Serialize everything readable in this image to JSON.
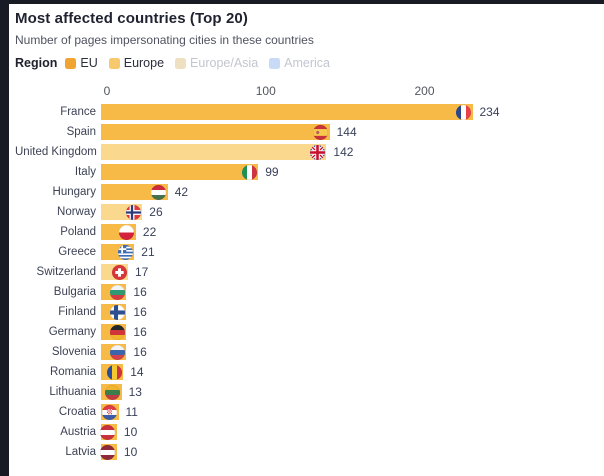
{
  "header": {
    "title": "Most affected countries (Top 20)",
    "subtitle": "Number of pages impersonating cities in these countries"
  },
  "chart_data": {
    "type": "bar",
    "orientation": "horizontal",
    "title": "Most affected countries (Top 20)",
    "subtitle": "Number of pages impersonating cities in these countries",
    "grid": false,
    "legend": {
      "title": "Region",
      "position": "top",
      "items": [
        {
          "label": "EU",
          "color": "#f1a42f",
          "active": true
        },
        {
          "label": "Europe",
          "color": "#f7c96d",
          "active": true
        },
        {
          "label": "Europe/Asia",
          "color": "#f0e0c2",
          "active": false
        },
        {
          "label": "America",
          "color": "#c8daf6",
          "active": false
        }
      ]
    },
    "x_ticks": [
      "0",
      "100",
      "200"
    ],
    "x_tick_values": [
      0,
      100,
      200
    ],
    "xlim": [
      0,
      290
    ],
    "region_colors": {
      "EU": "#f7ba47",
      "Europe": "#fad88d",
      "Europe/Asia": "#f0e0c2",
      "America": "#c8daf6"
    },
    "countries": [
      {
        "name": "France",
        "value": 234,
        "region": "EU",
        "flag": {
          "type": "v",
          "colors": [
            "#29488f",
            "#ffffff",
            "#e8414b"
          ]
        }
      },
      {
        "name": "Spain",
        "value": 144,
        "region": "EU",
        "flag": {
          "type": "spain",
          "colors": [
            "#c8323e",
            "#f7c94c"
          ]
        }
      },
      {
        "name": "United Kingdom",
        "value": 142,
        "region": "Europe",
        "flag": {
          "type": "uk",
          "colors": [
            "#2b3f8e",
            "#ffffff",
            "#c8102e"
          ]
        }
      },
      {
        "name": "Italy",
        "value": 99,
        "region": "EU",
        "flag": {
          "type": "v",
          "colors": [
            "#1d9355",
            "#ffffff",
            "#cd3340"
          ]
        }
      },
      {
        "name": "Hungary",
        "value": 42,
        "region": "EU",
        "flag": {
          "type": "h",
          "colors": [
            "#cd2a3e",
            "#ffffff",
            "#477050"
          ]
        }
      },
      {
        "name": "Norway",
        "value": 26,
        "region": "Europe",
        "flag": {
          "type": "nordic",
          "bg": "#e0393e",
          "arms": [
            {
              "color": "#ffffff",
              "w": 6.5
            },
            {
              "color": "#2b3c7e",
              "w": 3
            }
          ]
        }
      },
      {
        "name": "Poland",
        "value": 22,
        "region": "EU",
        "flag": {
          "type": "h",
          "colors": [
            "#ffffff",
            "#d4213d"
          ]
        }
      },
      {
        "name": "Greece",
        "value": 21,
        "region": "EU",
        "flag": {
          "type": "greece",
          "colors": [
            "#3d6eb5",
            "#ffffff"
          ]
        }
      },
      {
        "name": "Switzerland",
        "value": 17,
        "region": "Europe",
        "flag": {
          "type": "plus",
          "colors": [
            "#d8343a",
            "#ffffff"
          ]
        }
      },
      {
        "name": "Bulgaria",
        "value": 16,
        "region": "EU",
        "flag": {
          "type": "h",
          "colors": [
            "#f2f4f5",
            "#2e9a74",
            "#d53b42"
          ]
        }
      },
      {
        "name": "Finland",
        "value": 16,
        "region": "EU",
        "flag": {
          "type": "nordic",
          "bg": "#ffffff",
          "arms": [
            {
              "color": "#2e4f8f",
              "w": 5.5
            }
          ]
        }
      },
      {
        "name": "Germany",
        "value": 16,
        "region": "EU",
        "flag": {
          "type": "h",
          "colors": [
            "#26272b",
            "#d03438",
            "#f2b32c"
          ]
        }
      },
      {
        "name": "Slovenia",
        "value": 16,
        "region": "EU",
        "flag": {
          "type": "h",
          "colors": [
            "#f2f4f5",
            "#3c66ab",
            "#d5414b"
          ]
        }
      },
      {
        "name": "Romania",
        "value": 14,
        "region": "EU",
        "flag": {
          "type": "v",
          "colors": [
            "#2b4d9b",
            "#f5c832",
            "#cf3340"
          ]
        }
      },
      {
        "name": "Lithuania",
        "value": 13,
        "region": "EU",
        "flag": {
          "type": "h",
          "colors": [
            "#f0b431",
            "#3b7e4c",
            "#c23a44"
          ]
        }
      },
      {
        "name": "Croatia",
        "value": 11,
        "region": "EU",
        "flag": {
          "type": "croatia",
          "colors": [
            "#dd3b46",
            "#ffffff",
            "#3c5aa5"
          ]
        }
      },
      {
        "name": "Austria",
        "value": 10,
        "region": "EU",
        "flag": {
          "type": "h",
          "colors": [
            "#c8313e",
            "#ffffff",
            "#c8313e"
          ]
        }
      },
      {
        "name": "Latvia",
        "value": 10,
        "region": "EU",
        "flag": {
          "type": "h",
          "colors": [
            "#8e2a3a",
            "#ffffff",
            "#8e2a3a"
          ]
        }
      }
    ]
  },
  "colors": {
    "frame_strip": "#181b24",
    "title_text": "#1f2230",
    "subtitle_text": "#4f5360",
    "tick_text": "#53565f",
    "label_text": "#3c4254",
    "value_text": "#39415a",
    "inactive_legend_text": "#c2c6cf"
  }
}
